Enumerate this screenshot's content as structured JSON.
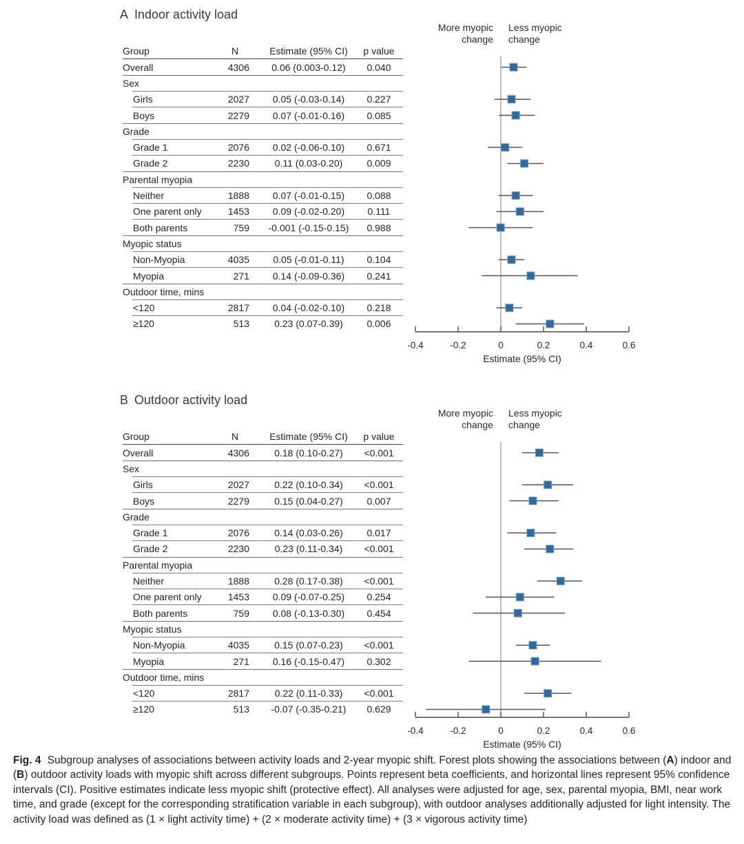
{
  "figure": {
    "caption_segments": [
      {
        "text": "Fig. 4",
        "bold": true
      },
      {
        "text": " Subgroup analyses of associations between activity loads and 2-year myopic shift. Forest plots showing the associations between (",
        "bold": false
      },
      {
        "text": "A",
        "bold": true
      },
      {
        "text": ") indoor and (",
        "bold": false
      },
      {
        "text": "B",
        "bold": true
      },
      {
        "text": ") outdoor activity loads with myopic shift across different subgroups. Points represent beta coefficients, and horizontal lines represent 95% confidence intervals (CI). Positive estimates indicate less myopic shift (protective effect). All analyses were adjusted for age, sex, parental myopia, BMI, near work time, and grade (except for the corresponding stratification variable in each subgroup), with outdoor analyses additionally adjusted for light intensity. The activity load was defined as (1 × light activity time) + (2 × moderate activity time) + (3 × vigorous activity time)",
        "bold": false
      }
    ],
    "marker_color": "#2e6b9d",
    "ci_line_color": "#545454",
    "zero_line_color": "#a6a6a6"
  },
  "chart_data": [
    {
      "type": "forest",
      "panel_letter": "A",
      "title": "Indoor activity load",
      "direction_labels": {
        "negative": "More myopic change",
        "positive": "Less myopic change"
      },
      "columns": [
        "Group",
        "N",
        "Estimate (95% CI)",
        "p value"
      ],
      "xlabel": "Estimate (95% CI)",
      "xlim": [
        -0.4,
        0.6
      ],
      "xticks": [
        -0.4,
        -0.2,
        0,
        0.2,
        0.4,
        0.6
      ],
      "rows": [
        {
          "kind": "data",
          "group": "Overall",
          "indent": false,
          "n": "4306",
          "estimate_text": "0.06 (0.003-0.12)",
          "p": "0.040",
          "est": 0.06,
          "lo": 0.003,
          "hi": 0.12,
          "rule": "full"
        },
        {
          "kind": "category",
          "group": "Sex",
          "rule": "indent"
        },
        {
          "kind": "data",
          "group": "Girls",
          "indent": true,
          "n": "2027",
          "estimate_text": "0.05 (-0.03-0.14)",
          "p": "0.227",
          "est": 0.05,
          "lo": -0.03,
          "hi": 0.14,
          "rule": "indent"
        },
        {
          "kind": "data",
          "group": "Boys",
          "indent": true,
          "n": "2279",
          "estimate_text": "0.07 (-0.01-0.16)",
          "p": "0.085",
          "est": 0.07,
          "lo": -0.01,
          "hi": 0.16,
          "rule": "full"
        },
        {
          "kind": "category",
          "group": "Grade",
          "rule": "indent"
        },
        {
          "kind": "data",
          "group": "Grade 1",
          "indent": true,
          "n": "2076",
          "estimate_text": "0.02 (-0.06-0.10)",
          "p": "0.671",
          "est": 0.02,
          "lo": -0.06,
          "hi": 0.1,
          "rule": "indent"
        },
        {
          "kind": "data",
          "group": "Grade 2",
          "indent": true,
          "n": "2230",
          "estimate_text": "0.11 (0.03-0.20)",
          "p": "0.009",
          "est": 0.11,
          "lo": 0.03,
          "hi": 0.2,
          "rule": "full"
        },
        {
          "kind": "category",
          "group": "Parental myopia",
          "rule": "indent"
        },
        {
          "kind": "data",
          "group": "Neither",
          "indent": true,
          "n": "1888",
          "estimate_text": "0.07 (-0.01-0.15)",
          "p": "0.088",
          "est": 0.07,
          "lo": -0.01,
          "hi": 0.15,
          "rule": "indent"
        },
        {
          "kind": "data",
          "group": "One parent only",
          "indent": true,
          "n": "1453",
          "estimate_text": "0.09 (-0.02-0.20)",
          "p": "0.111",
          "est": 0.09,
          "lo": -0.02,
          "hi": 0.2,
          "rule": "indent"
        },
        {
          "kind": "data",
          "group": "Both parents",
          "indent": true,
          "n": "759",
          "estimate_text": "-0.001 (-0.15-0.15)",
          "p": "0.988",
          "est": -0.001,
          "lo": -0.15,
          "hi": 0.15,
          "rule": "full"
        },
        {
          "kind": "category",
          "group": "Myopic status",
          "rule": "indent"
        },
        {
          "kind": "data",
          "group": "Non-Myopia",
          "indent": true,
          "n": "4035",
          "estimate_text": "0.05 (-0.01-0.11)",
          "p": "0.104",
          "est": 0.05,
          "lo": -0.01,
          "hi": 0.11,
          "rule": "indent"
        },
        {
          "kind": "data",
          "group": "Myopia",
          "indent": true,
          "n": "271",
          "estimate_text": "0.14 (-0.09-0.36)",
          "p": "0.241",
          "est": 0.14,
          "lo": -0.09,
          "hi": 0.36,
          "rule": "full"
        },
        {
          "kind": "category",
          "group": "Outdoor time, mins",
          "rule": "indent"
        },
        {
          "kind": "data",
          "group": "<120",
          "indent": true,
          "n": "2817",
          "estimate_text": "0.04 (-0.02-0.10)",
          "p": "0.218",
          "est": 0.04,
          "lo": -0.02,
          "hi": 0.1,
          "rule": "indent"
        },
        {
          "kind": "data",
          "group": "≥120",
          "indent": true,
          "n": "513",
          "estimate_text": "0.23 (0.07-0.39)",
          "p": "0.006",
          "est": 0.23,
          "lo": 0.07,
          "hi": 0.39,
          "rule": "none"
        }
      ]
    },
    {
      "type": "forest",
      "panel_letter": "B",
      "title": "Outdoor activity load",
      "direction_labels": {
        "negative": "More myopic change",
        "positive": "Less myopic change"
      },
      "columns": [
        "Group",
        "N",
        "Estimate (95% CI)",
        "p value"
      ],
      "xlabel": "Estimate (95% CI)",
      "xlim": [
        -0.4,
        0.6
      ],
      "xticks": [
        -0.4,
        -0.2,
        0,
        0.2,
        0.4,
        0.6
      ],
      "rows": [
        {
          "kind": "data",
          "group": "Overall",
          "indent": false,
          "n": "4306",
          "estimate_text": "0.18 (0.10-0.27)",
          "p": "<0.001",
          "est": 0.18,
          "lo": 0.1,
          "hi": 0.27,
          "rule": "full"
        },
        {
          "kind": "category",
          "group": "Sex",
          "rule": "indent"
        },
        {
          "kind": "data",
          "group": "Girls",
          "indent": true,
          "n": "2027",
          "estimate_text": "0.22 (0.10-0.34)",
          "p": "<0.001",
          "est": 0.22,
          "lo": 0.1,
          "hi": 0.34,
          "rule": "indent"
        },
        {
          "kind": "data",
          "group": "Boys",
          "indent": true,
          "n": "2279",
          "estimate_text": "0.15 (0.04-0.27)",
          "p": "0.007",
          "est": 0.15,
          "lo": 0.04,
          "hi": 0.27,
          "rule": "full"
        },
        {
          "kind": "category",
          "group": "Grade",
          "rule": "indent"
        },
        {
          "kind": "data",
          "group": "Grade 1",
          "indent": true,
          "n": "2076",
          "estimate_text": "0.14 (0.03-0.26)",
          "p": "0.017",
          "est": 0.14,
          "lo": 0.03,
          "hi": 0.26,
          "rule": "indent"
        },
        {
          "kind": "data",
          "group": "Grade 2",
          "indent": true,
          "n": "2230",
          "estimate_text": "0.23 (0.11-0.34)",
          "p": "<0.001",
          "est": 0.23,
          "lo": 0.11,
          "hi": 0.34,
          "rule": "full"
        },
        {
          "kind": "category",
          "group": "Parental myopia",
          "rule": "indent"
        },
        {
          "kind": "data",
          "group": "Neither",
          "indent": true,
          "n": "1888",
          "estimate_text": "0.28 (0.17-0.38)",
          "p": "<0.001",
          "est": 0.28,
          "lo": 0.17,
          "hi": 0.38,
          "rule": "indent"
        },
        {
          "kind": "data",
          "group": "One parent only",
          "indent": true,
          "n": "1453",
          "estimate_text": "0.09 (-0.07-0.25)",
          "p": "0.254",
          "est": 0.09,
          "lo": -0.07,
          "hi": 0.25,
          "rule": "indent"
        },
        {
          "kind": "data",
          "group": "Both parents",
          "indent": true,
          "n": "759",
          "estimate_text": "0.08 (-0.13-0.30)",
          "p": "0.454",
          "est": 0.08,
          "lo": -0.13,
          "hi": 0.3,
          "rule": "full"
        },
        {
          "kind": "category",
          "group": "Myopic status",
          "rule": "indent"
        },
        {
          "kind": "data",
          "group": "Non-Myopia",
          "indent": true,
          "n": "4035",
          "estimate_text": "0.15 (0.07-0.23)",
          "p": "<0.001",
          "est": 0.15,
          "lo": 0.07,
          "hi": 0.23,
          "rule": "indent"
        },
        {
          "kind": "data",
          "group": "Myopia",
          "indent": true,
          "n": "271",
          "estimate_text": "0.16 (-0.15-0.47)",
          "p": "0.302",
          "est": 0.16,
          "lo": -0.15,
          "hi": 0.47,
          "rule": "full"
        },
        {
          "kind": "category",
          "group": "Outdoor time, mins",
          "rule": "indent"
        },
        {
          "kind": "data",
          "group": "<120",
          "indent": true,
          "n": "2817",
          "estimate_text": "0.22 (0.11-0.33)",
          "p": "<0.001",
          "est": 0.22,
          "lo": 0.11,
          "hi": 0.33,
          "rule": "indent"
        },
        {
          "kind": "data",
          "group": "≥120",
          "indent": true,
          "n": "513",
          "estimate_text": "-0.07 (-0.35-0.21)",
          "p": "0.629",
          "est": -0.07,
          "lo": -0.35,
          "hi": 0.21,
          "rule": "none"
        }
      ]
    }
  ]
}
